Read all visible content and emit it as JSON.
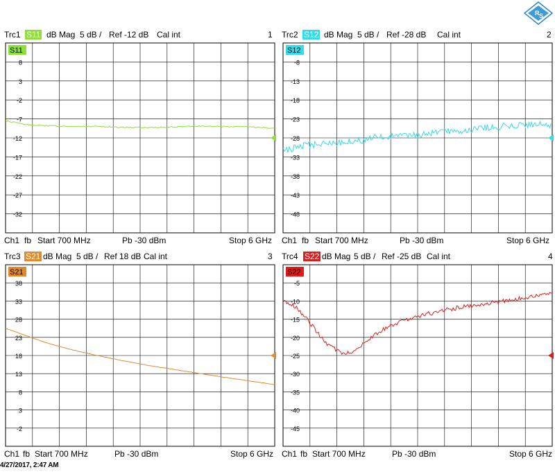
{
  "panels": [
    {
      "trace": "Trc1",
      "param": "S11",
      "mag": "dB Mag",
      "scale": "5 dB /",
      "ref": "Ref -12 dB",
      "cal": "Cal int",
      "number": "1",
      "color": "#8de03a",
      "text_color": "#8de03a",
      "channel_line": {
        "ch": "Ch1",
        "fb": "fb",
        "start": "Start 700 MHz",
        "power": "Pb -30 dBm",
        "stop": "Stop 6 GHz"
      }
    },
    {
      "trace": "Trc2",
      "param": "S12",
      "mag": "dB Mag",
      "scale": "5 dB /",
      "ref": "Ref -28 dB",
      "cal": "Cal int",
      "number": "2",
      "color": "#35dbe6",
      "text_color": "#35dbe6",
      "channel_line": {
        "ch": "Ch1",
        "fb": "fb",
        "start": "Start 700 MHz",
        "power": "Pb -30 dBm",
        "stop": "Stop 6 GHz"
      }
    },
    {
      "trace": "Trc3",
      "param": "S21",
      "mag": "dB Mag",
      "scale": "5 dB /",
      "ref": "Ref 18 dB",
      "cal": "Cal int",
      "number": "3",
      "color": "#e28a2a",
      "text_color": "#e28a2a",
      "channel_line": {
        "ch": "Ch1",
        "fb": "fb",
        "start": "Start 700 MHz",
        "power": "Pb -30 dBm",
        "stop": "Stop 6 GHz"
      }
    },
    {
      "trace": "Trc4",
      "param": "S22",
      "mag": "dB Mag",
      "scale": "5 dB /",
      "ref": "Ref -25 dB",
      "cal": "Cal int",
      "number": "4",
      "color": "#e01b1b",
      "text_color": "#b02a2a",
      "channel_line": {
        "ch": "Ch1",
        "fb": "fb",
        "start": "Start 700 MHz",
        "power": "Pb -30 dBm",
        "stop": "Stop 6 GHz"
      }
    }
  ],
  "timestamp": "4/27/2017, 2:47 AM",
  "logo_name": "rohde-schwarz-logo",
  "chart_data": [
    {
      "type": "line",
      "title": "",
      "xlabel": "",
      "ylabel": "",
      "x_unit": "MHz",
      "xlim": [
        700,
        6000
      ],
      "y_ticks": [
        8,
        3,
        -2,
        -7,
        -12,
        -17,
        -22,
        -27,
        -32
      ],
      "ylim": [
        -37,
        13
      ],
      "reference_level": -12,
      "grid": true,
      "series": [
        {
          "name": "S11",
          "x": [
            700,
            1100,
            1500,
            2000,
            2500,
            3000,
            3500,
            4000,
            4500,
            5000,
            5500,
            6000
          ],
          "y": [
            -7.5,
            -8.5,
            -8.8,
            -9.0,
            -9.0,
            -9.2,
            -9.3,
            -9.1,
            -8.9,
            -9.0,
            -9.1,
            -9.4
          ]
        }
      ]
    },
    {
      "type": "line",
      "title": "",
      "xlabel": "",
      "ylabel": "",
      "x_unit": "MHz",
      "xlim": [
        700,
        6000
      ],
      "y_ticks": [
        -8,
        -13,
        -18,
        -23,
        -28,
        -33,
        -38,
        -43,
        -48
      ],
      "ylim": [
        -53,
        -3
      ],
      "reference_level": -28,
      "grid": true,
      "series": [
        {
          "name": "S12",
          "x": [
            700,
            1100,
            1500,
            2000,
            2500,
            3000,
            3500,
            4000,
            4500,
            5000,
            5500,
            6000
          ],
          "y": [
            -31.5,
            -30.0,
            -29.5,
            -29.0,
            -28.0,
            -27.5,
            -27.0,
            -26.3,
            -25.6,
            -25.0,
            -24.6,
            -24.5
          ]
        }
      ]
    },
    {
      "type": "line",
      "title": "",
      "xlabel": "",
      "ylabel": "",
      "x_unit": "MHz",
      "xlim": [
        700,
        6000
      ],
      "y_ticks": [
        38,
        33,
        28,
        23,
        18,
        13,
        8,
        3,
        -2
      ],
      "ylim": [
        -7,
        43
      ],
      "reference_level": 18,
      "grid": true,
      "series": [
        {
          "name": "S21",
          "x": [
            700,
            1100,
            1500,
            2000,
            2500,
            3000,
            3500,
            4000,
            4500,
            5000,
            5500,
            6000
          ],
          "y": [
            25.5,
            23.5,
            21.5,
            19.6,
            18.0,
            16.6,
            15.3,
            14.2,
            13.1,
            12.0,
            11.0,
            10.0
          ]
        }
      ]
    },
    {
      "type": "line",
      "title": "",
      "xlabel": "",
      "ylabel": "",
      "x_unit": "MHz",
      "xlim": [
        700,
        6000
      ],
      "y_ticks": [
        -5,
        -10,
        -15,
        -20,
        -25,
        -30,
        -35,
        -40,
        -45
      ],
      "ylim": [
        -50,
        0
      ],
      "reference_level": -25,
      "grid": true,
      "series": [
        {
          "name": "S22",
          "x": [
            700,
            900,
            1200,
            1500,
            1800,
            2000,
            2300,
            2700,
            3200,
            3800,
            4400,
            5000,
            5600,
            6000
          ],
          "y": [
            -10.0,
            -11.0,
            -15.5,
            -21.0,
            -24.0,
            -24.5,
            -21.5,
            -17.5,
            -14.8,
            -12.6,
            -11.3,
            -10.1,
            -8.7,
            -7.8
          ]
        }
      ]
    }
  ]
}
